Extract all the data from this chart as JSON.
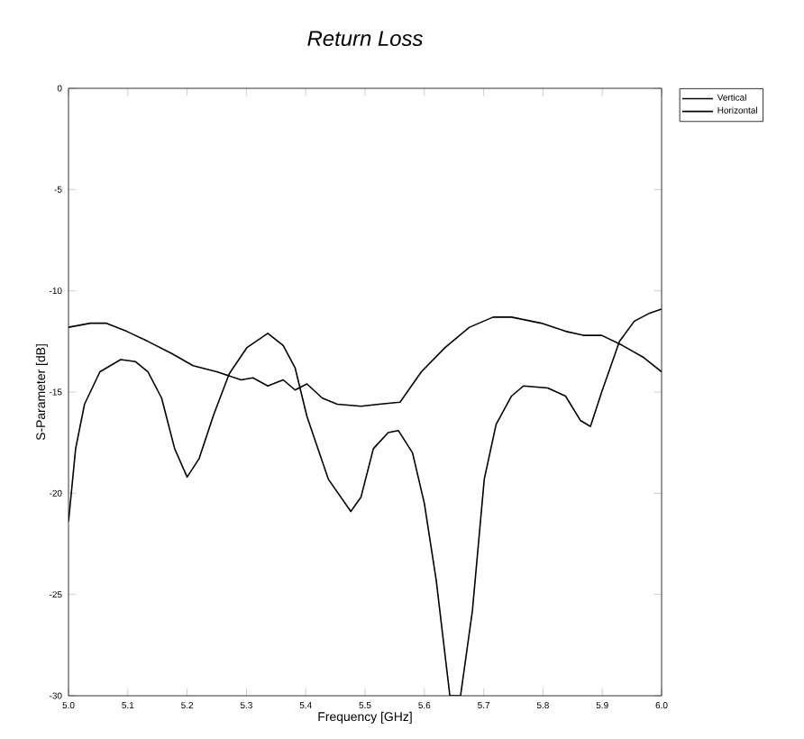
{
  "chart_data": {
    "type": "line",
    "title": "Return Loss",
    "xlabel": "Frequency [GHz]",
    "ylabel": "S-Parameter [dB]",
    "xlim": [
      5.0,
      6.0
    ],
    "ylim": [
      -30,
      0
    ],
    "xticks": [
      {
        "value": 5.0,
        "label": "5.0"
      },
      5.1,
      5.2,
      5.3,
      5.4,
      5.5,
      5.6,
      5.7,
      5.8,
      5.9,
      {
        "value": 6.0,
        "label": "6.0"
      }
    ],
    "yticks": [
      -30,
      -25,
      -20,
      -15,
      -10,
      -5,
      0
    ],
    "grid": false,
    "legend": "top right",
    "marker": "none",
    "line_style": "solid",
    "series": [
      {
        "name": "Vertical",
        "color": "#000000",
        "x": [
          5.0,
          5.012,
          5.027,
          5.053,
          5.088,
          5.113,
          5.134,
          5.157,
          5.179,
          5.2,
          5.22,
          5.245,
          5.271,
          5.301,
          5.336,
          5.362,
          5.382,
          5.402,
          5.438,
          5.476,
          5.493,
          5.514,
          5.539,
          5.556,
          5.58,
          5.6,
          5.62,
          5.643,
          5.661,
          5.681,
          5.701,
          5.721,
          5.747,
          5.767,
          5.808,
          5.838,
          5.863,
          5.88,
          5.899,
          5.929,
          5.954,
          5.98,
          6.0
        ],
        "values": [
          -21.4,
          -17.8,
          -15.6,
          -14.0,
          -13.4,
          -13.5,
          -14.0,
          -15.3,
          -17.8,
          -19.2,
          -18.3,
          -16.1,
          -14.1,
          -12.8,
          -12.1,
          -12.7,
          -13.8,
          -16.2,
          -19.3,
          -20.9,
          -20.2,
          -17.8,
          -17.0,
          -16.9,
          -18.0,
          -20.5,
          -24.3,
          -30,
          -30,
          -25.8,
          -19.3,
          -16.6,
          -15.2,
          -14.7,
          -14.8,
          -15.2,
          -16.4,
          -16.7,
          -15.0,
          -12.5,
          -11.5,
          -11.1,
          -10.9
        ]
      },
      {
        "name": "Horizontal",
        "color": "#000000",
        "x": [
          5.0,
          5.037,
          5.063,
          5.098,
          5.134,
          5.174,
          5.21,
          5.25,
          5.291,
          5.311,
          5.336,
          5.362,
          5.382,
          5.402,
          5.428,
          5.453,
          5.493,
          5.524,
          5.559,
          5.595,
          5.635,
          5.676,
          5.716,
          5.747,
          5.797,
          5.838,
          5.868,
          5.899,
          5.934,
          5.97,
          6.0
        ],
        "values": [
          -11.8,
          -11.6,
          -11.6,
          -12.0,
          -12.5,
          -13.1,
          -13.7,
          -14.0,
          -14.4,
          -14.3,
          -14.7,
          -14.4,
          -14.9,
          -14.6,
          -15.3,
          -15.6,
          -15.7,
          -15.6,
          -15.5,
          -14.0,
          -12.8,
          -11.8,
          -11.3,
          -11.3,
          -11.6,
          -12.0,
          -12.2,
          -12.2,
          -12.7,
          -13.3,
          -14.0
        ]
      }
    ]
  }
}
